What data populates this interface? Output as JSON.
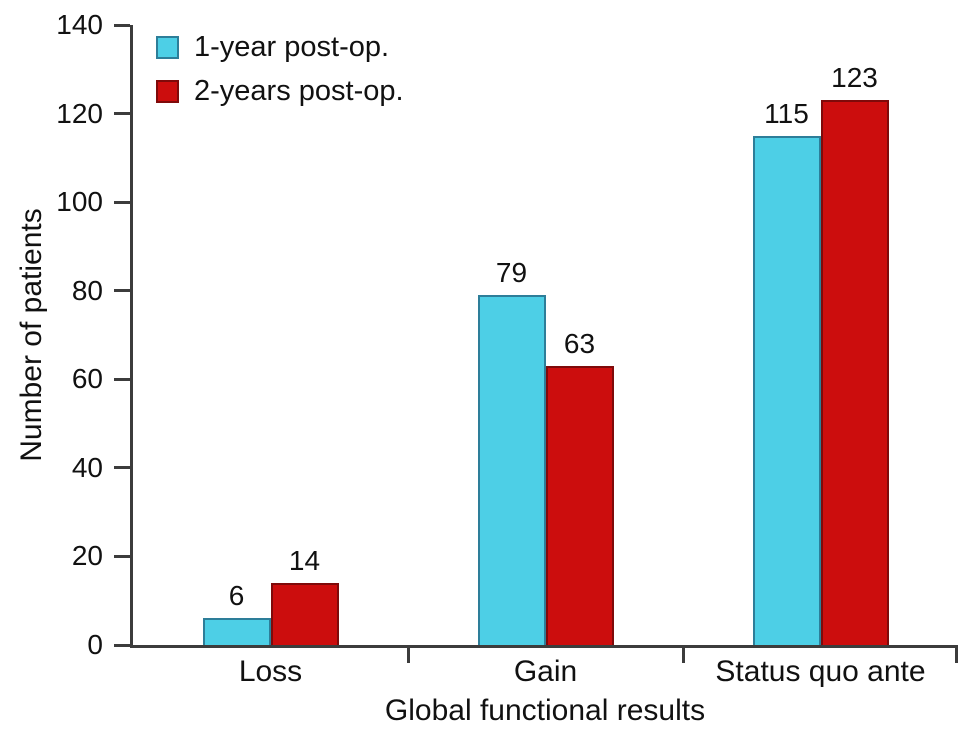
{
  "colors": {
    "series1_fill": "#4dcfe6",
    "series1_border": "#2d7e99",
    "series2_fill": "#cc0d0d",
    "series2_border": "#7f0a0a",
    "axis": "#3c3c3c",
    "text": "#111111"
  },
  "chart_data": {
    "type": "bar",
    "title": "",
    "categories": [
      "Loss",
      "Gain",
      "Status quo ante"
    ],
    "series": [
      {
        "name": "1-year post-op.",
        "color": "#4dcfe6",
        "border_color": "#2d7e99",
        "values": [
          6,
          79,
          115
        ]
      },
      {
        "name": "2-years post-op.",
        "color": "#cc0d0d",
        "border_color": "#7f0a0a",
        "values": [
          14,
          63,
          123
        ]
      }
    ],
    "xlabel": "Global functional results",
    "ylabel": "Number of patients",
    "ylim": [
      0,
      140
    ],
    "yticks": [
      0,
      20,
      40,
      60,
      80,
      100,
      120,
      140
    ],
    "grid": false,
    "legend_position": "top-left",
    "bar_labels": true
  }
}
